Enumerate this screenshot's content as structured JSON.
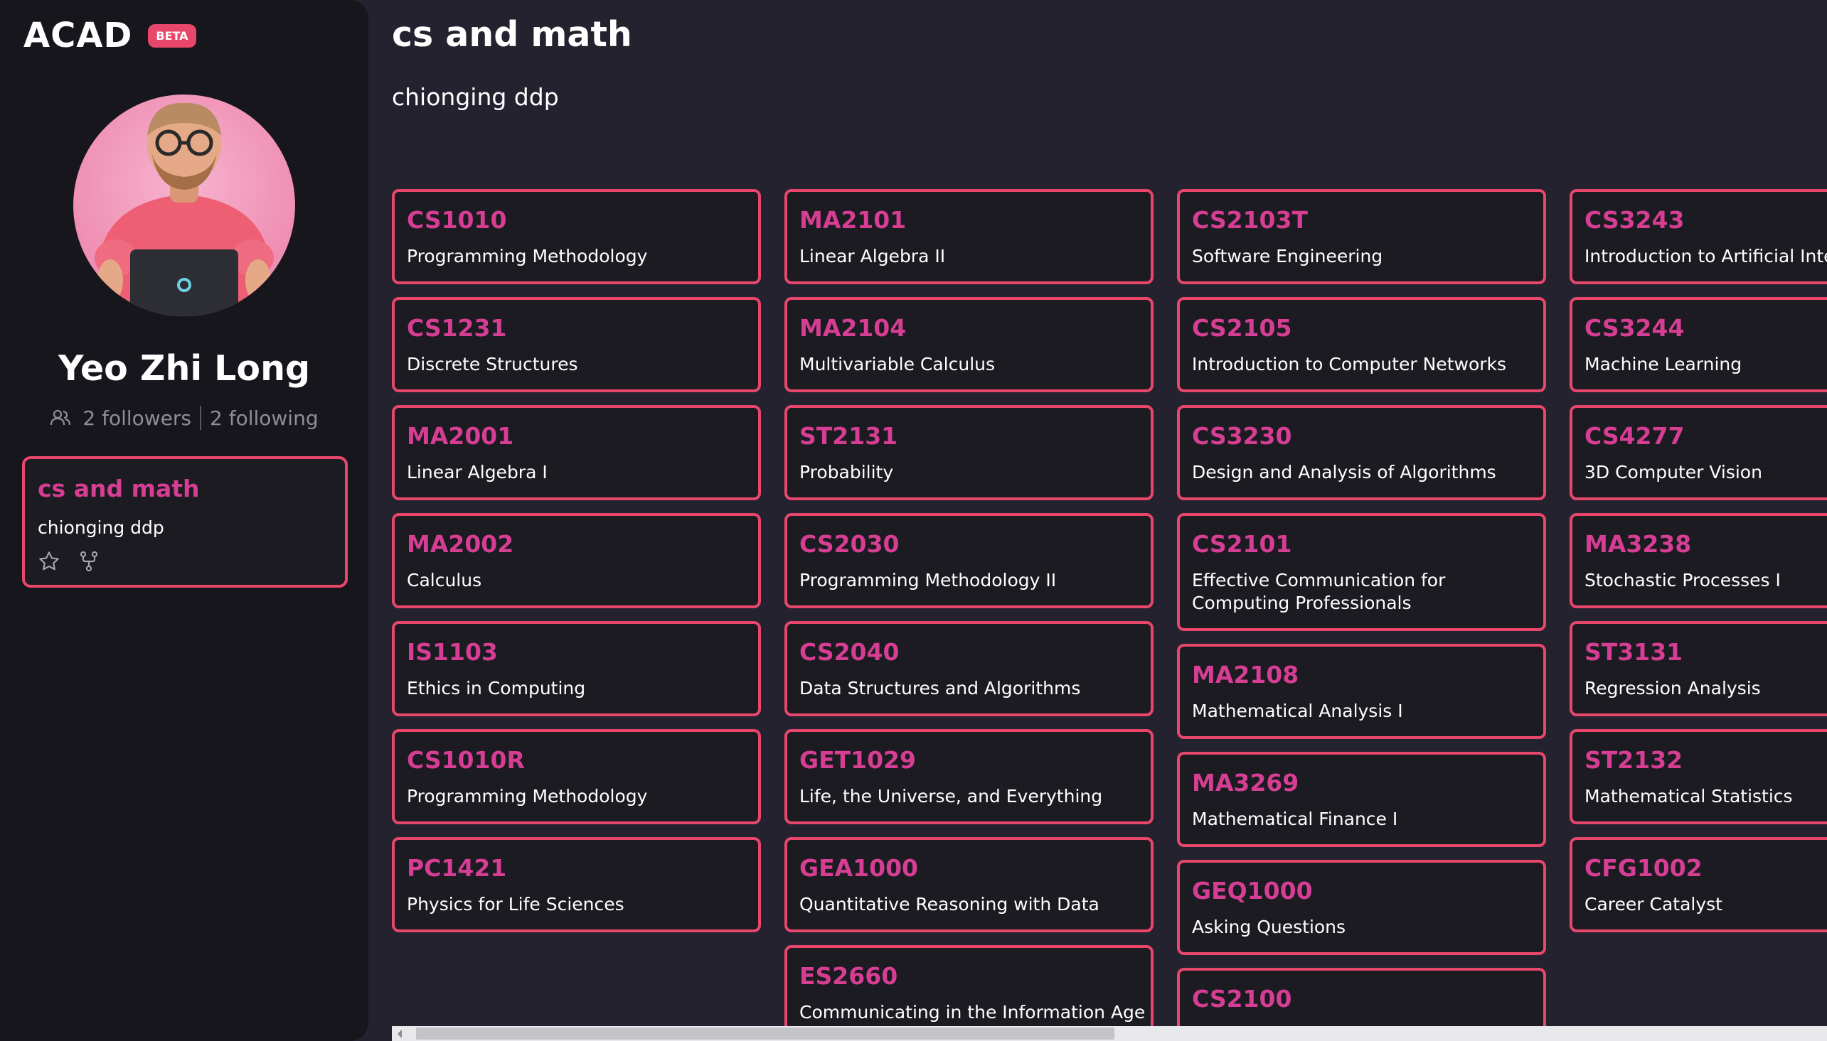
{
  "sidebar": {
    "brand": "ACAD",
    "badge": "BETA",
    "user_name": "Yeo Zhi Long",
    "followers": "2 followers",
    "following": "2 following",
    "plan_card": {
      "title": "cs and math",
      "description": "chionging ddp"
    }
  },
  "main": {
    "title": "cs and math",
    "description": "chionging ddp",
    "columns": [
      [
        {
          "code": "CS1010",
          "name": "Programming Methodology"
        },
        {
          "code": "CS1231",
          "name": "Discrete Structures"
        },
        {
          "code": "MA2001",
          "name": "Linear Algebra I"
        },
        {
          "code": "MA2002",
          "name": "Calculus"
        },
        {
          "code": "IS1103",
          "name": "Ethics in Computing"
        },
        {
          "code": "CS1010R",
          "name": "Programming Methodology"
        },
        {
          "code": "PC1421",
          "name": "Physics for Life Sciences"
        }
      ],
      [
        {
          "code": "MA2101",
          "name": "Linear Algebra II"
        },
        {
          "code": "MA2104",
          "name": "Multivariable Calculus"
        },
        {
          "code": "ST2131",
          "name": "Probability"
        },
        {
          "code": "CS2030",
          "name": "Programming Methodology II"
        },
        {
          "code": "CS2040",
          "name": "Data Structures and Algorithms"
        },
        {
          "code": "GET1029",
          "name": "Life, the Universe, and Everything"
        },
        {
          "code": "GEA1000",
          "name": "Quantitative Reasoning with Data"
        },
        {
          "code": "ES2660",
          "name": "Communicating in the Information Age"
        }
      ],
      [
        {
          "code": "CS2103T",
          "name": "Software Engineering"
        },
        {
          "code": "CS2105",
          "name": "Introduction to Computer Networks"
        },
        {
          "code": "CS3230",
          "name": "Design and Analysis of Algorithms"
        },
        {
          "code": "CS2101",
          "name": "Effective Communication for Computing Professionals"
        },
        {
          "code": "MA2108",
          "name": "Mathematical Analysis I"
        },
        {
          "code": "MA3269",
          "name": "Mathematical Finance I"
        },
        {
          "code": "GEQ1000",
          "name": "Asking Questions"
        },
        {
          "code": "CS2100",
          "name": ""
        }
      ],
      [
        {
          "code": "CS3243",
          "name": "Introduction to Artificial Intellig"
        },
        {
          "code": "CS3244",
          "name": "Machine Learning"
        },
        {
          "code": "CS4277",
          "name": "3D Computer Vision"
        },
        {
          "code": "MA3238",
          "name": "Stochastic Processes I"
        },
        {
          "code": "ST3131",
          "name": "Regression Analysis"
        },
        {
          "code": "ST2132",
          "name": "Mathematical Statistics"
        },
        {
          "code": "CFG1002",
          "name": "Career Catalyst"
        }
      ]
    ]
  },
  "colors": {
    "accent_border": "#e8476b",
    "code_text": "#d63e93",
    "page_bg": "#24222f",
    "sidebar_bg": "#17161d",
    "badge_bg": "#e8476b"
  }
}
